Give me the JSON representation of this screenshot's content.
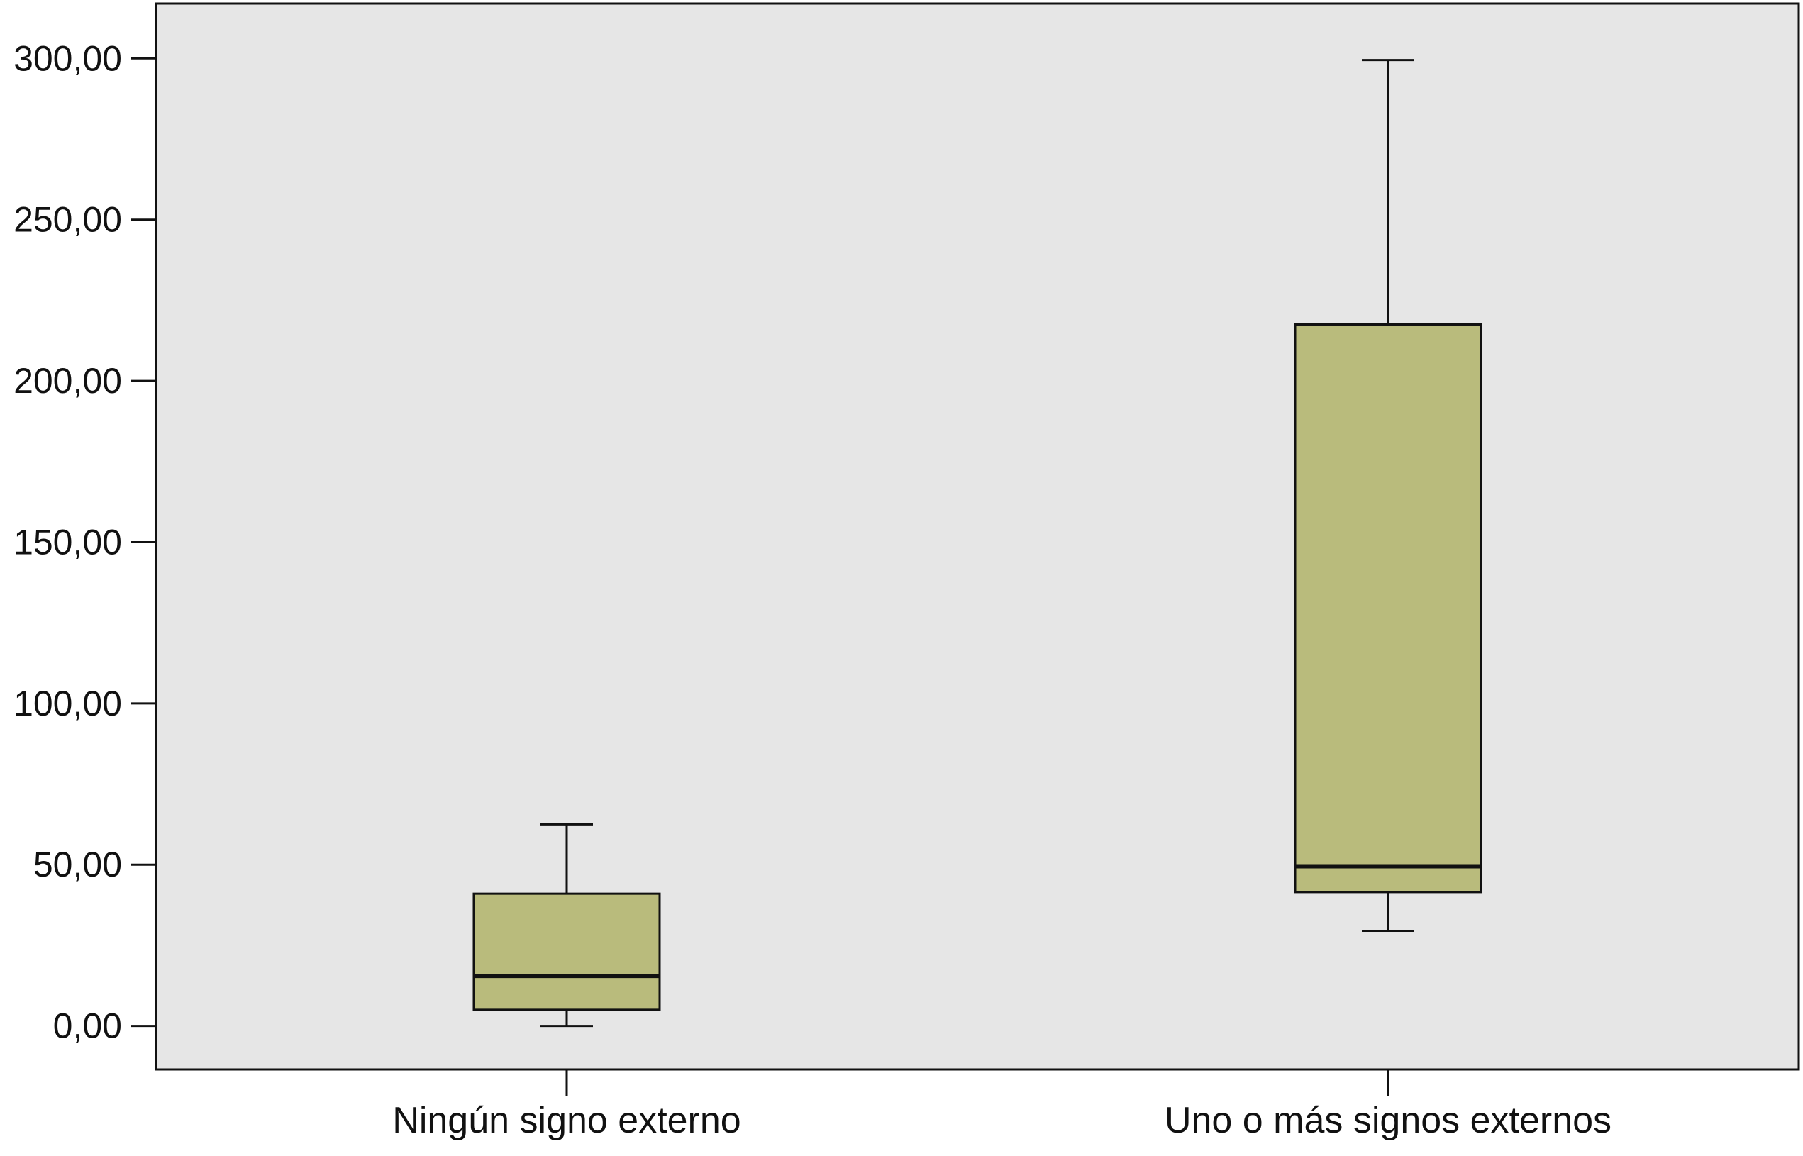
{
  "chart_data": {
    "type": "box",
    "title": "",
    "xlabel": "",
    "ylabel": "",
    "ylim": [
      -13.5,
      317
    ],
    "yticks": [
      0,
      50,
      100,
      150,
      200,
      250,
      300
    ],
    "ytick_labels": [
      "0,00",
      "50,00",
      "100,00",
      "150,00",
      "200,00",
      "250,00",
      "300,00"
    ],
    "categories": [
      "Ningún signo externo",
      "Uno o más signos externos"
    ],
    "boxes": [
      {
        "category": "Ningún signo externo",
        "min": 0,
        "q1": 5,
        "median": 15.5,
        "q3": 41,
        "max": 62.5
      },
      {
        "category": "Uno o más signos externos",
        "min": 29.5,
        "q1": 41.5,
        "median": 49.5,
        "q3": 217.5,
        "max": 299.5
      }
    ],
    "grid": false,
    "legend": "none",
    "colors": {
      "plot_background": "#e6e6e6",
      "box_fill": "#b9bb7c",
      "stroke": "#111111"
    }
  }
}
